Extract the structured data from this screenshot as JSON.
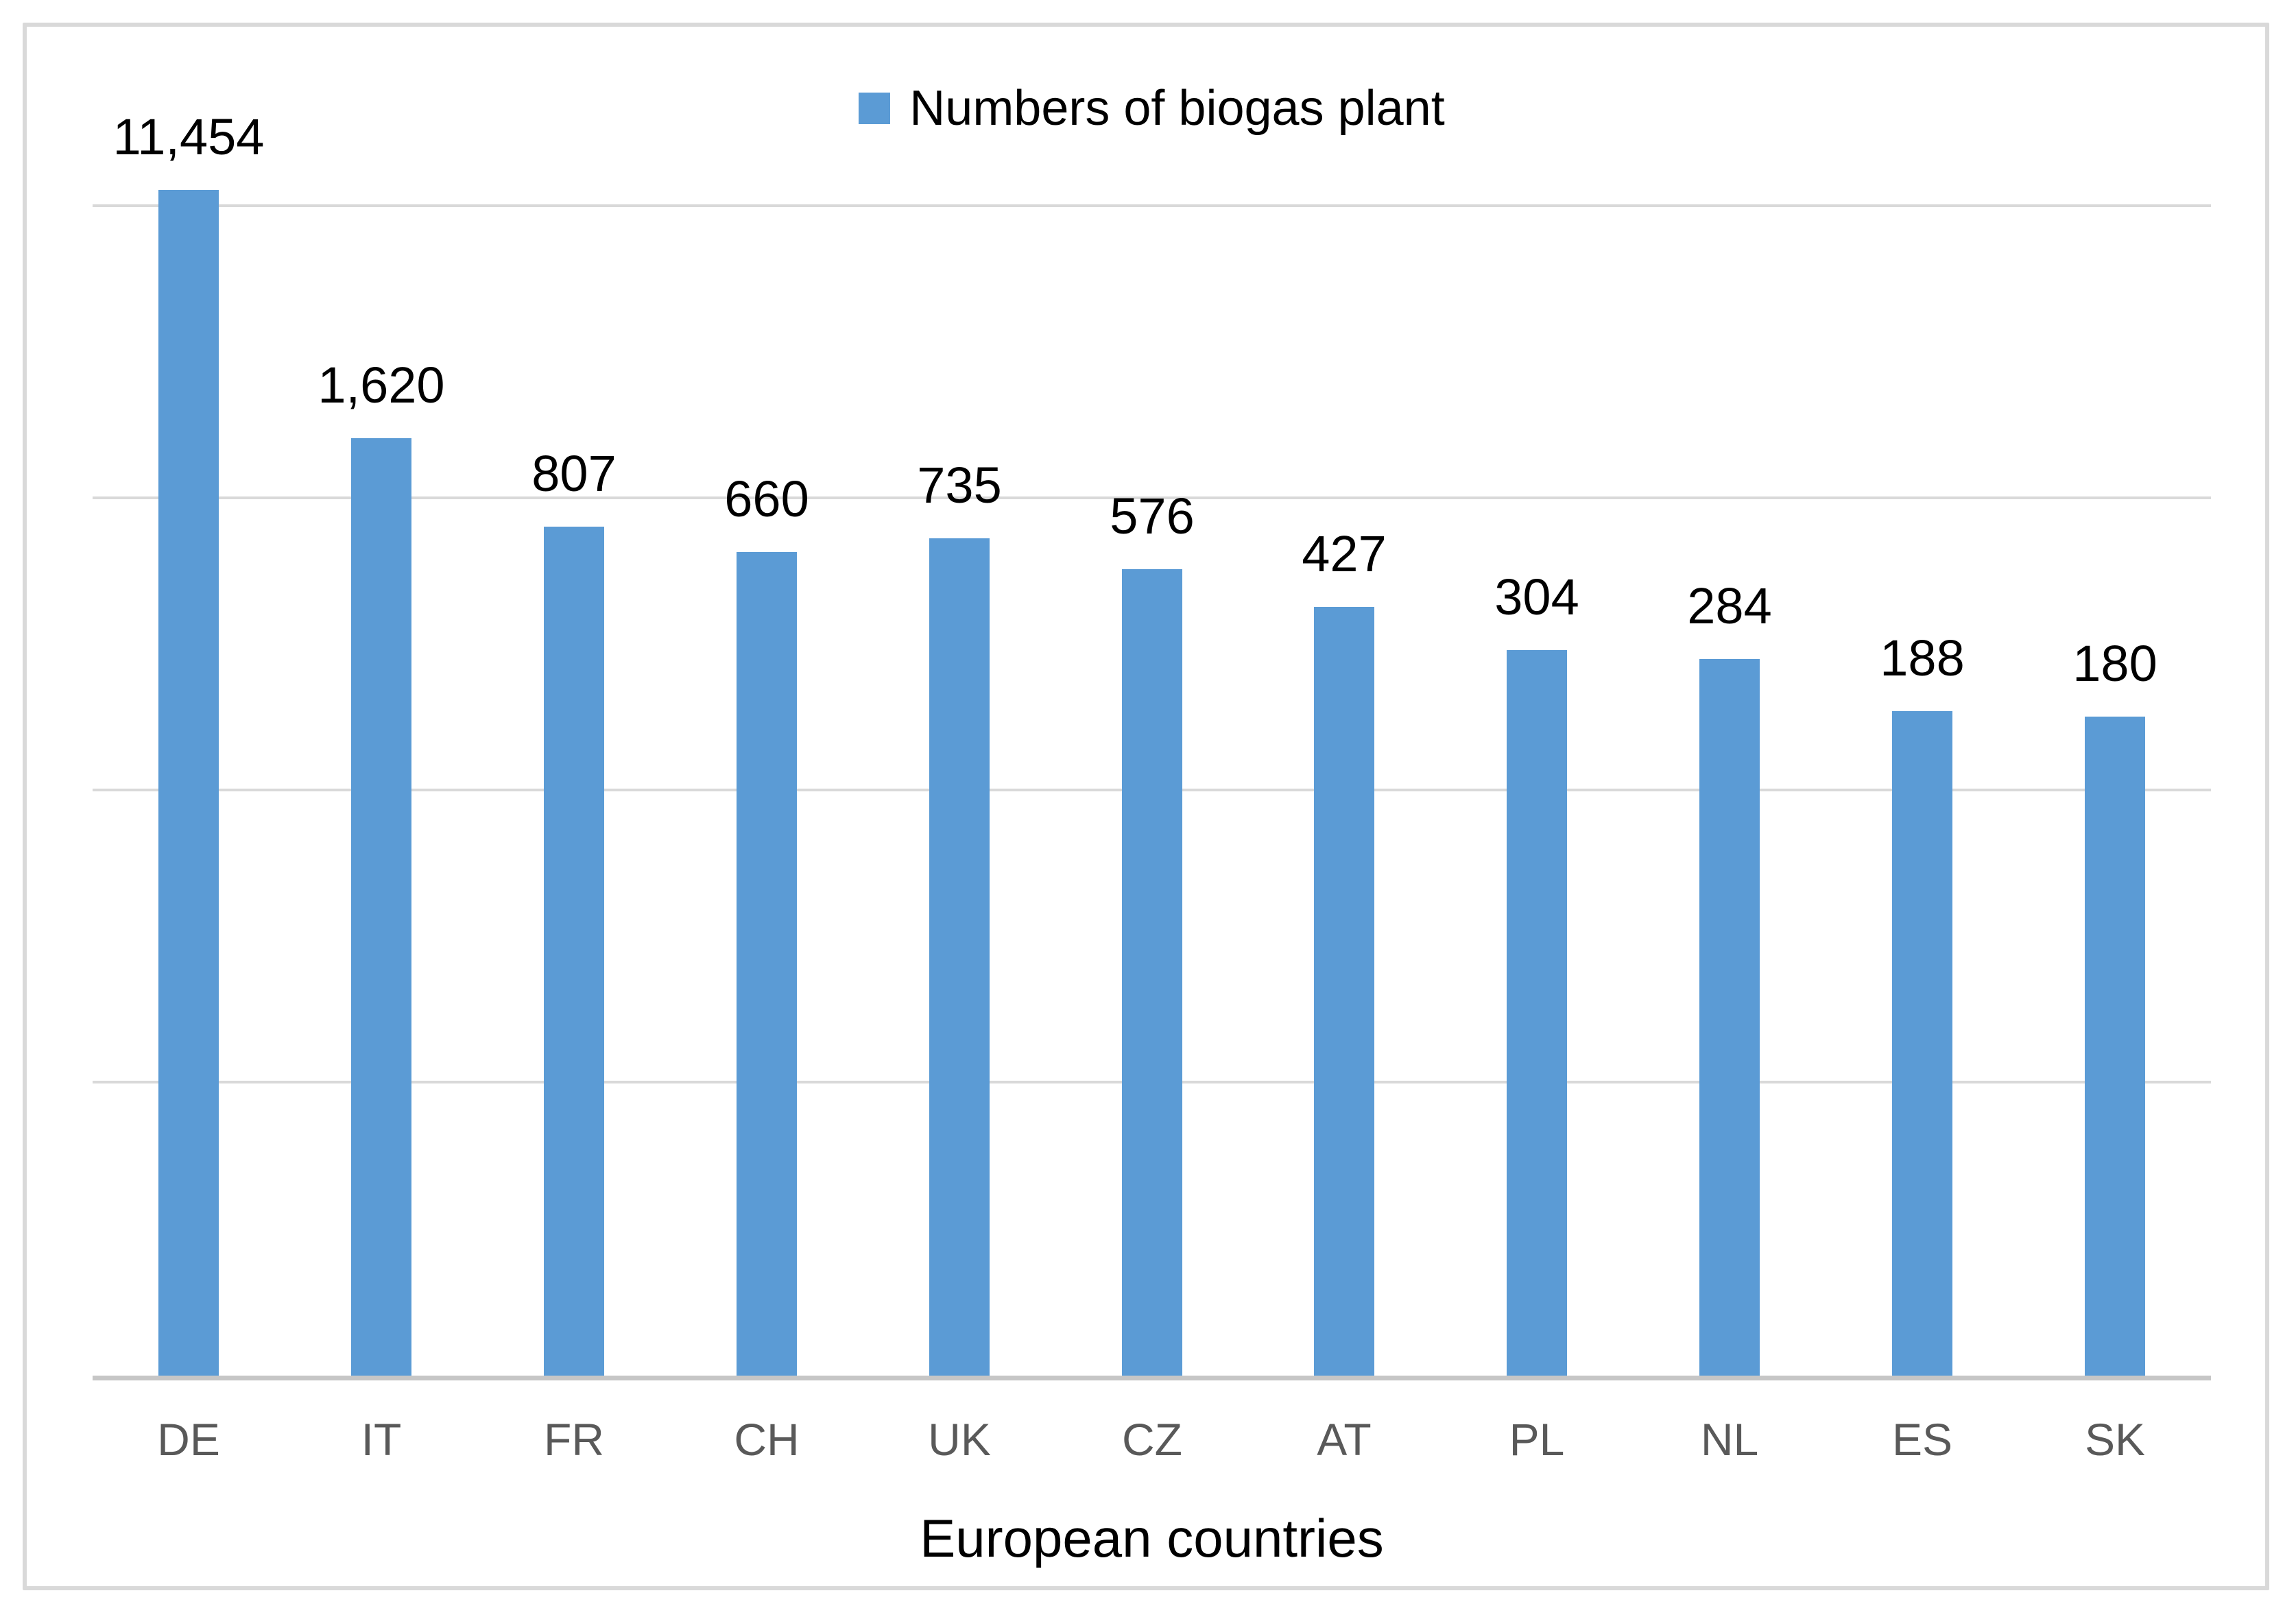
{
  "chart_data": {
    "type": "bar",
    "title": "",
    "xlabel": "European countries",
    "ylabel": "",
    "legend": {
      "label": "Numbers of biogas plant",
      "position": "top-center",
      "marker_color": "#5B9BD5"
    },
    "categories": [
      "DE",
      "IT",
      "FR",
      "CH",
      "UK",
      "CZ",
      "AT",
      "PL",
      "NL",
      "ES",
      "SK"
    ],
    "values": [
      11454,
      1620,
      807,
      660,
      735,
      576,
      427,
      304,
      284,
      188,
      180
    ],
    "value_labels": [
      "11,454",
      "1,620",
      "807",
      "660",
      "735",
      "576",
      "427",
      "304",
      "284",
      "188",
      "180"
    ],
    "y_axis": {
      "scale": "log10",
      "min": 1,
      "gridline_levels": [
        10,
        100,
        1000,
        10000
      ],
      "tick_labels_visible": false
    },
    "grid": true,
    "colors": {
      "bar": "#5B9BD5",
      "gridline": "#D9D9D9",
      "axis_line": "#C6C6C6",
      "category_label": "#595959",
      "data_label": "#000000",
      "axis_title": "#000000",
      "chart_border": "#D9D9D9",
      "background": "#FFFFFF"
    }
  }
}
